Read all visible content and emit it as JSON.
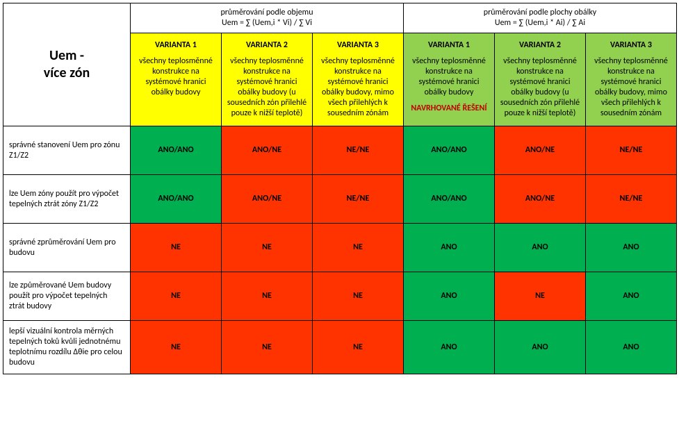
{
  "title_line1": "Uem -",
  "title_line2": "více zón",
  "groups": [
    {
      "title_line1": "průměrování podle objemu",
      "title_line2": "Uem = ∑ (Uem,i * Vi) / ∑ Vi"
    },
    {
      "title_line1": "průměrování podle plochy obálky",
      "title_line2": "Uem = ∑ (Uem,i * Ai) / ∑ Ai"
    }
  ],
  "variants": [
    {
      "title": "VARIANTA 1",
      "desc": "všechny teplosměnné konstrukce na systémové hranici obálky budovy",
      "note": "",
      "bg": "bg-yellow"
    },
    {
      "title": "VARIANTA 2",
      "desc": "všechny teplosměnné konstrukce na systémové hranici obálky budovy (u sousedních zón přilehlé pouze k nižší teplotě)",
      "note": "",
      "bg": "bg-yellow"
    },
    {
      "title": "VARIANTA 3",
      "desc": "všechny teplosměnné konstrukce na systémové hranici obálky budovy, mimo všech přilehlých k sousedním zónám",
      "note": "",
      "bg": "bg-yellow"
    },
    {
      "title": "VARIANTA 1",
      "desc": "všechny teplosměnné konstrukce na systémové hranici obálky budovy",
      "note": "NAVRHOVANÉ ŘEŠENÍ",
      "bg": "bg-lgreen"
    },
    {
      "title": "VARIANTA 2",
      "desc": "všechny teplosměnné konstrukce na systémové hranici obálky budovy (u sousedních zón přilehlé pouze k nižší teplotě)",
      "note": "",
      "bg": "bg-lgreen"
    },
    {
      "title": "VARIANTA 3",
      "desc": "všechny teplosměnné konstrukce na systémové hranici obálky budovy, mimo všech přilehlých k sousedním zónám",
      "note": "",
      "bg": "bg-lgreen"
    }
  ],
  "rows": [
    {
      "label": "správné stanovení Uem pro zónu Z1/Z2",
      "cells": [
        {
          "text": "ANO/ANO",
          "color": "green"
        },
        {
          "text": "ANO/NE",
          "color": "red"
        },
        {
          "text": "NE/NE",
          "color": "red"
        },
        {
          "text": "ANO/ANO",
          "color": "green"
        },
        {
          "text": "ANO/NE",
          "color": "red"
        },
        {
          "text": "NE/NE",
          "color": "red"
        }
      ]
    },
    {
      "label": "lze Uem zóny použít pro výpočet tepelných ztrát zóny Z1/Z2",
      "cells": [
        {
          "text": "ANO/ANO",
          "color": "green"
        },
        {
          "text": "ANO/NE",
          "color": "red"
        },
        {
          "text": "NE/NE",
          "color": "red"
        },
        {
          "text": "ANO/ANO",
          "color": "green"
        },
        {
          "text": "ANO/NE",
          "color": "red"
        },
        {
          "text": "NE/NE",
          "color": "red"
        }
      ]
    },
    {
      "label": "správné zprůměrování Uem pro budovu",
      "cells": [
        {
          "text": "NE",
          "color": "red"
        },
        {
          "text": "NE",
          "color": "red"
        },
        {
          "text": "NE",
          "color": "red"
        },
        {
          "text": "ANO",
          "color": "green"
        },
        {
          "text": "ANO",
          "color": "green"
        },
        {
          "text": "ANO",
          "color": "green"
        }
      ]
    },
    {
      "label": "lze způměrované Uem budovy použít pro výpočet tepelných ztrát budovy",
      "cells": [
        {
          "text": "NE",
          "color": "red"
        },
        {
          "text": "NE",
          "color": "red"
        },
        {
          "text": "NE",
          "color": "red"
        },
        {
          "text": "ANO",
          "color": "green"
        },
        {
          "text": "NE",
          "color": "red"
        },
        {
          "text": "ANO",
          "color": "green"
        }
      ]
    },
    {
      "label": "lepší vizuální kontrola měrných tepelných toků kvůli jednotnému teplotnímu rozdílu Δθie pro celou budovu",
      "cells": [
        {
          "text": "NE",
          "color": "red"
        },
        {
          "text": "NE",
          "color": "red"
        },
        {
          "text": "NE",
          "color": "red"
        },
        {
          "text": "ANO",
          "color": "green"
        },
        {
          "text": "ANO",
          "color": "green"
        },
        {
          "text": "ANO",
          "color": "green"
        }
      ]
    }
  ]
}
